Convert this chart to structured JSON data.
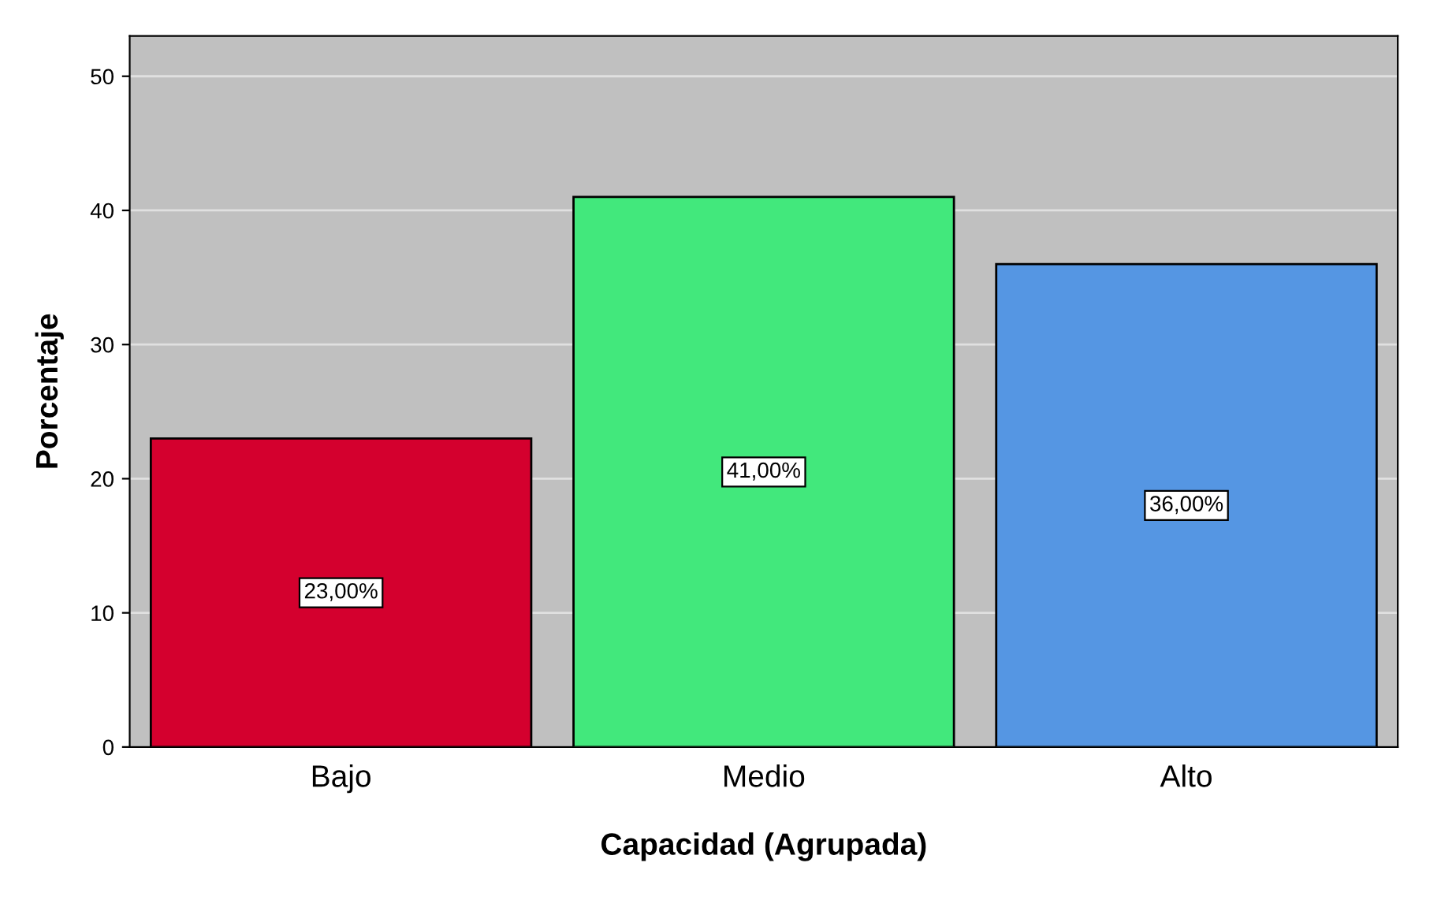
{
  "chart_data": {
    "type": "bar",
    "xlabel": "Capacidad (Agrupada)",
    "ylabel": "Porcentaje",
    "categories": [
      "Bajo",
      "Medio",
      "Alto"
    ],
    "values": [
      23,
      41,
      36
    ],
    "colors": [
      "#d4002e",
      "#42e87c",
      "#5596e3"
    ],
    "value_labels": [
      "23,00%",
      "41,00%",
      "36,00%"
    ],
    "ylim": [
      0,
      53
    ],
    "yticks": [
      0,
      10,
      20,
      30,
      40,
      50
    ],
    "grid": "y"
  }
}
